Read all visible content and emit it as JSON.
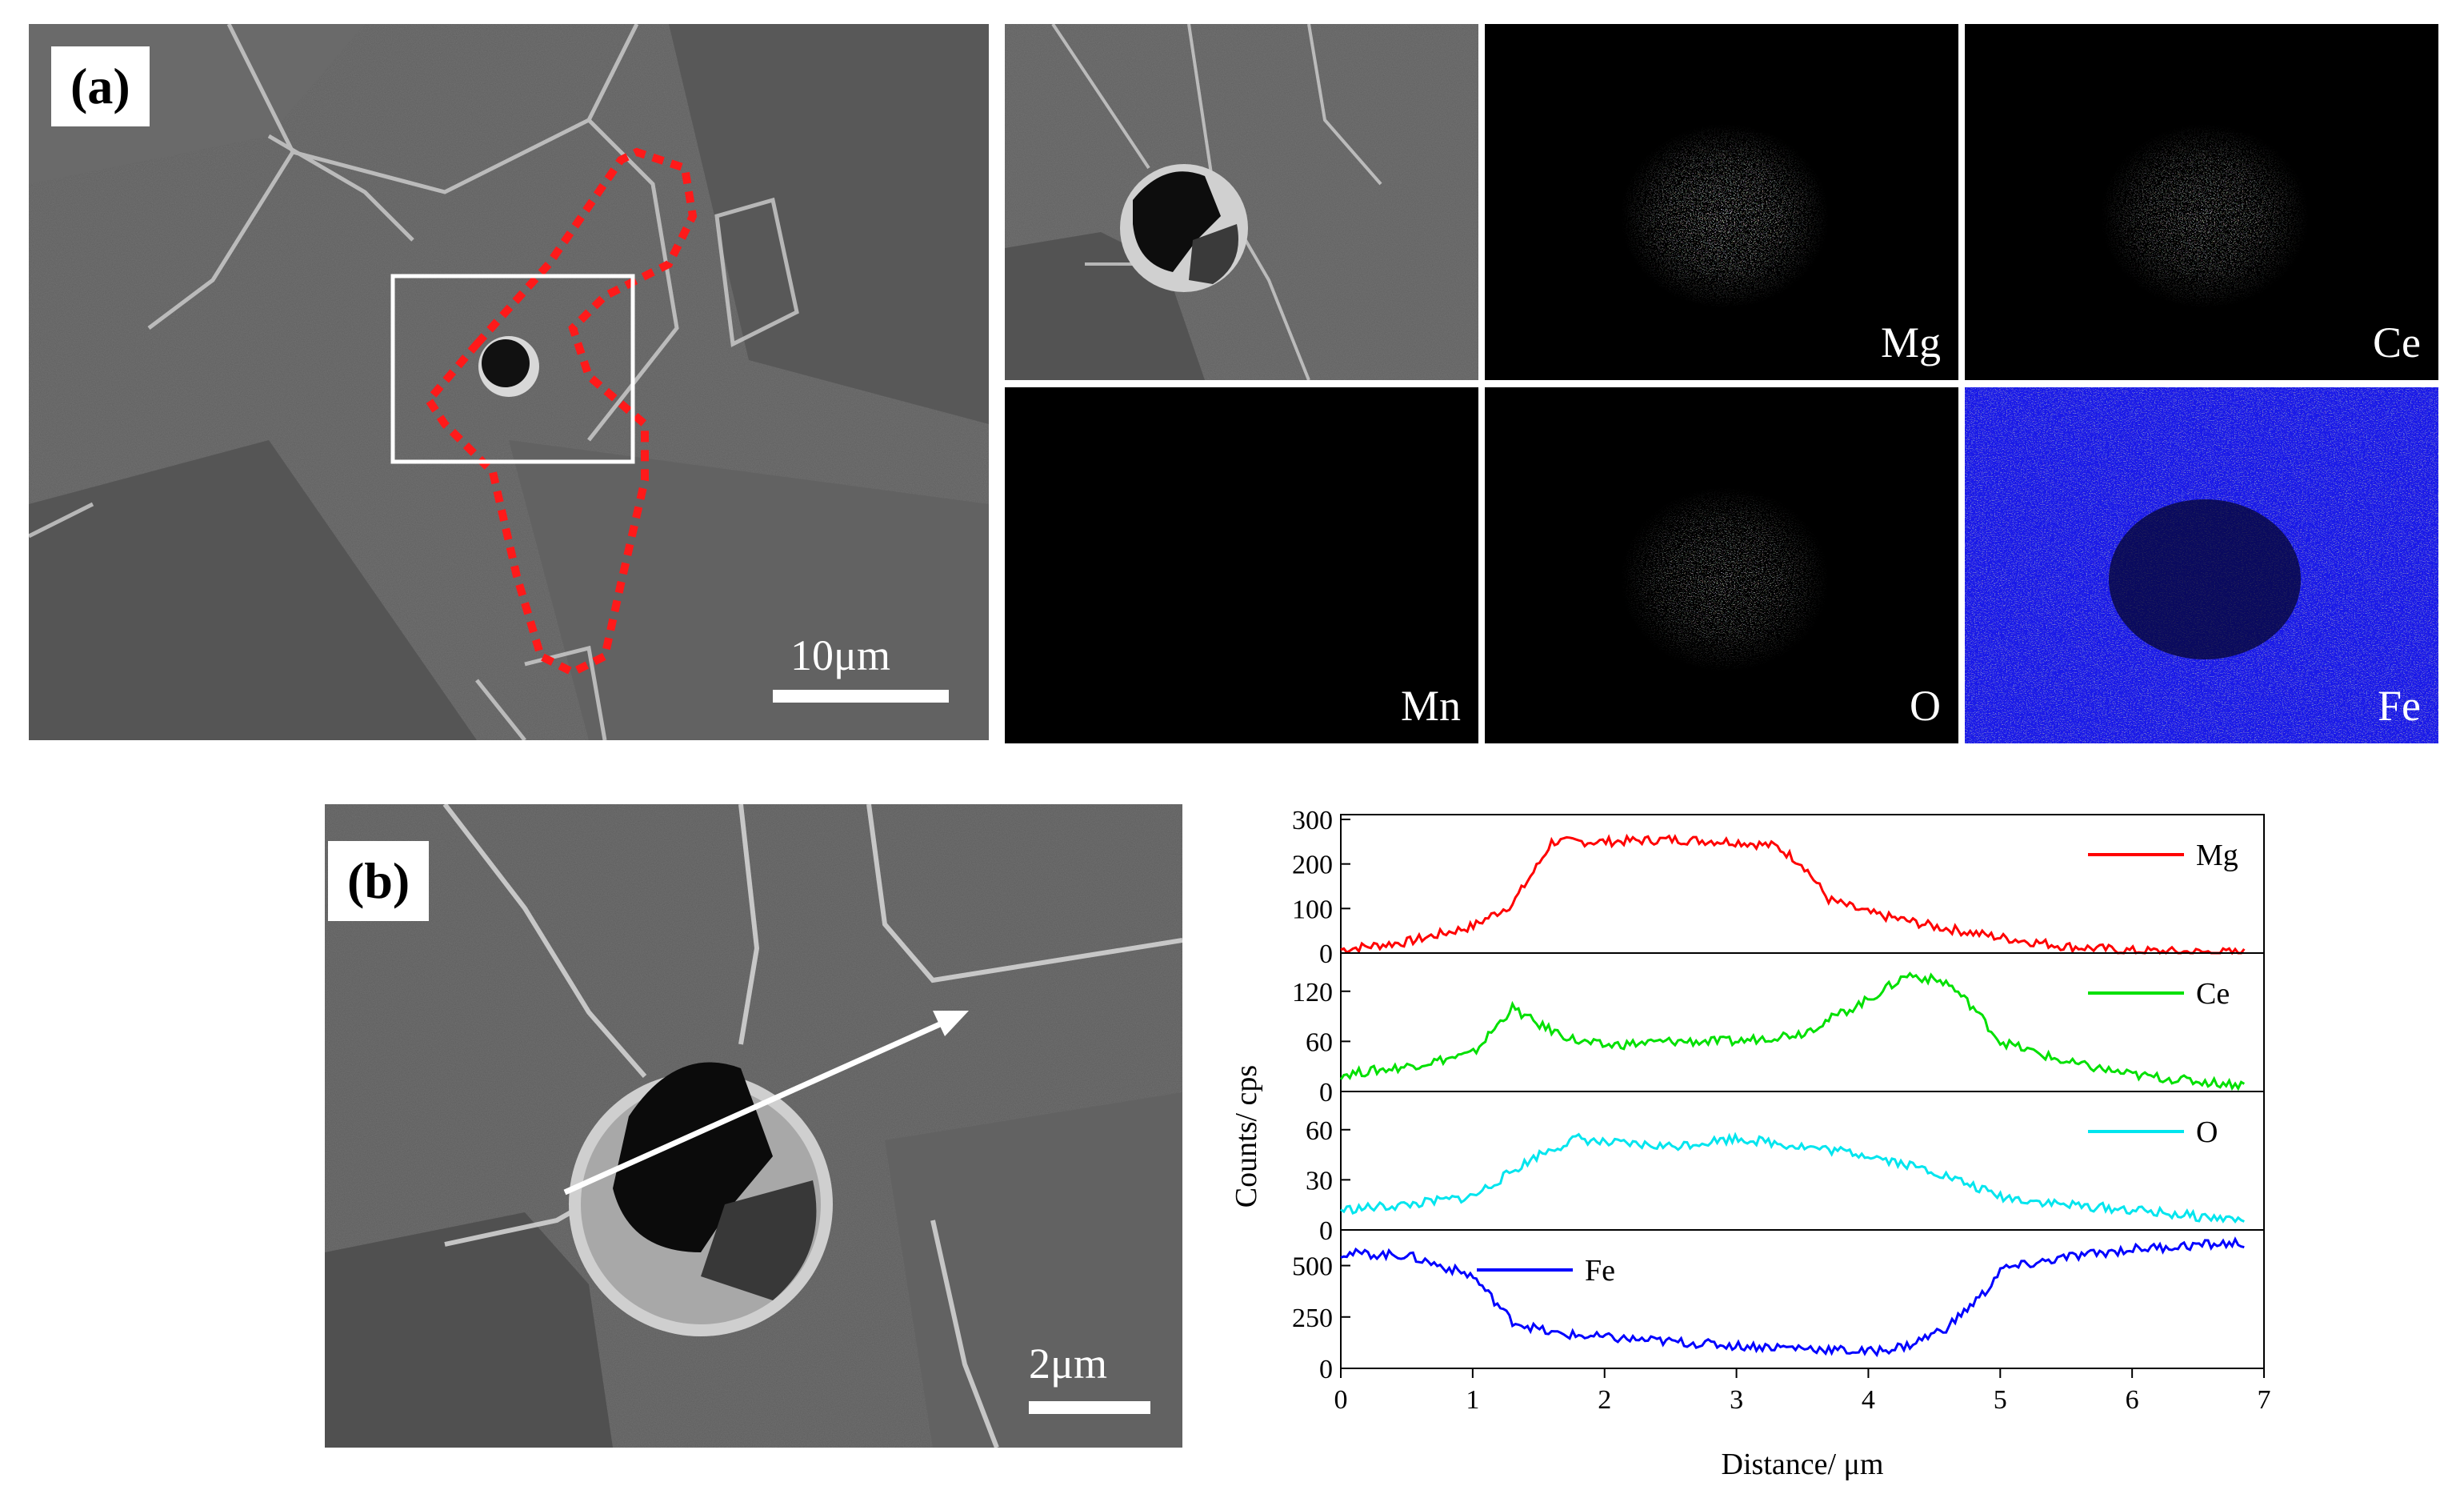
{
  "figure": {
    "panel_a": {
      "label": "(a)",
      "scale_bar": "10μm",
      "maps": [
        {
          "element": "Mg",
          "color": "#ff2a1a"
        },
        {
          "element": "Ce",
          "color": "#22e022"
        },
        {
          "element": "Mn",
          "color": "#d84ad8"
        },
        {
          "element": "O",
          "color": "#22d8d8"
        },
        {
          "element": "Fe",
          "color": "#1a1aff"
        }
      ]
    },
    "panel_b": {
      "label": "(b)",
      "scale_bar": "2μm"
    }
  },
  "chart_data": {
    "type": "line",
    "xlabel": "Distance/ μm",
    "ylabel": "Counts/ cps",
    "xlim": [
      0,
      7
    ],
    "xticks": [
      0,
      1,
      2,
      3,
      4,
      5,
      6,
      7
    ],
    "series": [
      {
        "name": "Mg",
        "color": "#ff0000",
        "ylim": [
          0,
          300
        ],
        "yticks": [
          0,
          100,
          200,
          300
        ],
        "legend": "top-right",
        "x": [
          0,
          0.5,
          1.0,
          1.3,
          1.5,
          1.6,
          2.0,
          2.5,
          3.0,
          3.3,
          3.5,
          3.7,
          4.0,
          4.5,
          5.0,
          5.5,
          6.0,
          6.5,
          6.85
        ],
        "values": [
          8,
          25,
          60,
          110,
          200,
          250,
          250,
          255,
          250,
          240,
          200,
          120,
          90,
          60,
          35,
          15,
          5,
          2,
          1
        ]
      },
      {
        "name": "Ce",
        "color": "#00e000",
        "ylim": [
          0,
          160
        ],
        "yticks": [
          0,
          60,
          120
        ],
        "legend": "top-right",
        "x": [
          0,
          0.5,
          1.0,
          1.3,
          1.5,
          1.8,
          2.0,
          2.5,
          3.0,
          3.5,
          4.0,
          4.3,
          4.6,
          4.8,
          5.0,
          5.5,
          6.0,
          6.5,
          6.85
        ],
        "values": [
          20,
          30,
          45,
          100,
          80,
          60,
          55,
          60,
          60,
          70,
          110,
          140,
          130,
          100,
          60,
          35,
          20,
          12,
          8
        ]
      },
      {
        "name": "O",
        "color": "#00e5ee",
        "ylim": [
          0,
          80
        ],
        "yticks": [
          0,
          30,
          60
        ],
        "legend": "top-right",
        "x": [
          0,
          0.5,
          1.0,
          1.5,
          1.8,
          2.0,
          2.5,
          3.0,
          3.5,
          4.0,
          4.5,
          5.0,
          5.5,
          6.0,
          6.5,
          6.85
        ],
        "values": [
          12,
          15,
          20,
          45,
          55,
          52,
          50,
          55,
          50,
          45,
          35,
          20,
          15,
          12,
          8,
          6
        ]
      },
      {
        "name": "Fe",
        "color": "#0000ff",
        "ylim": [
          0,
          650
        ],
        "yticks": [
          0,
          250,
          500
        ],
        "legend": "top-left",
        "x": [
          0,
          0.5,
          1.0,
          1.3,
          1.6,
          2.0,
          2.5,
          3.0,
          3.5,
          4.0,
          4.3,
          4.6,
          4.9,
          5.0,
          5.5,
          6.0,
          6.5,
          6.85
        ],
        "values": [
          560,
          550,
          450,
          230,
          170,
          150,
          130,
          110,
          100,
          80,
          110,
          200,
          380,
          480,
          540,
          580,
          600,
          610
        ]
      }
    ]
  }
}
